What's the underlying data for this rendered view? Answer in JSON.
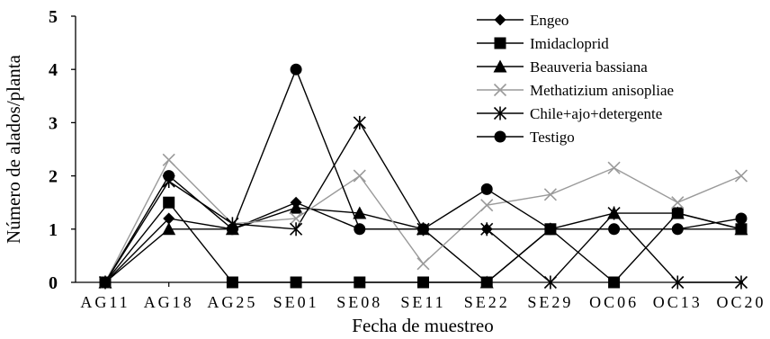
{
  "chart_data": {
    "type": "line",
    "title": "",
    "xlabel": "Fecha de muestreo",
    "ylabel": "Número de alados/planta",
    "categories": [
      "AG11",
      "AG18",
      "AG25",
      "SE01",
      "SE08",
      "SE11",
      "SE22",
      "SE29",
      "OC06",
      "OC13",
      "OC20"
    ],
    "ylim": [
      0,
      5
    ],
    "yticks": [
      0,
      1,
      2,
      3,
      4,
      5
    ],
    "grid": false,
    "legend_position": "top-right",
    "series": [
      {
        "name": "Engeo",
        "marker": "diamond",
        "color": "#000000",
        "values": [
          0,
          1.2,
          1.0,
          1.5,
          1.0,
          1.0,
          1.0,
          1.0,
          1.0,
          1.0,
          1.0
        ]
      },
      {
        "name": "Imidacloprid",
        "marker": "square",
        "color": "#000000",
        "values": [
          0,
          1.5,
          0,
          0,
          0,
          0,
          0,
          1.0,
          0,
          1.3,
          1.0
        ]
      },
      {
        "name": "Beauveria bassiana",
        "marker": "triangle",
        "color": "#000000",
        "values": [
          0,
          1.0,
          1.0,
          1.4,
          1.3,
          1.0,
          0,
          1.0,
          1.3,
          1.3,
          1.0
        ]
      },
      {
        "name": "Methatizium anisopliae",
        "marker": "x",
        "color": "#9a9a9a",
        "values": [
          0,
          2.3,
          1.1,
          1.2,
          2.0,
          0.35,
          1.45,
          1.65,
          2.15,
          1.5,
          2.0
        ]
      },
      {
        "name": "Chile+ajo+detergente",
        "marker": "asterisk",
        "color": "#000000",
        "values": [
          0,
          1.9,
          1.1,
          1.0,
          3.0,
          1.0,
          1.0,
          0,
          1.3,
          0,
          0
        ]
      },
      {
        "name": "Testigo",
        "marker": "circle",
        "color": "#000000",
        "values": [
          0,
          2.0,
          1.0,
          4.0,
          1.0,
          1.0,
          1.75,
          1.0,
          1.0,
          1.0,
          1.2
        ]
      }
    ]
  }
}
